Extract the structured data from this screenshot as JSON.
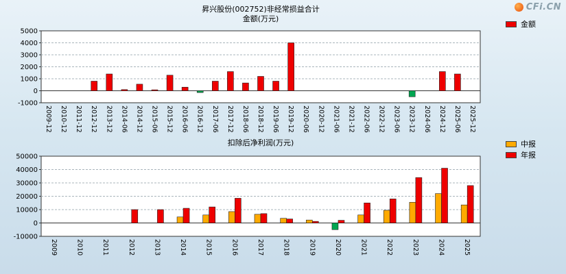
{
  "logo": {
    "text": "CFi.CN"
  },
  "chart_data": [
    {
      "type": "bar",
      "title": "昇兴股份(002752)非经常损益合计",
      "subtitle": "金额(万元)",
      "legend": [
        {
          "label": "金额",
          "color": "#ee0000"
        }
      ],
      "ylim": [
        -1000,
        5000
      ],
      "yticks": [
        5000,
        4000,
        3000,
        2000,
        1000,
        0,
        -1000
      ],
      "grid": "dashed-horizontal",
      "legend_position": "top-right",
      "negative_color": "#00a651",
      "categories": [
        "2009-12",
        "2010-12",
        "2011-12",
        "2012-12",
        "2013-12",
        "2014-06",
        "2014-12",
        "2015-06",
        "2015-12",
        "2016-06",
        "2016-12",
        "2017-06",
        "2017-12",
        "2018-06",
        "2018-12",
        "2019-06",
        "2019-12",
        "2020-06",
        "2020-12",
        "2021-06",
        "2021-12",
        "2022-06",
        "2022-12",
        "2023-06",
        "2023-12",
        "2024-06",
        "2024-12",
        "2025-06",
        "2025-12"
      ],
      "series": [
        {
          "name": "金额",
          "color": "#ee0000",
          "values": [
            null,
            null,
            null,
            800,
            1400,
            100,
            550,
            80,
            1300,
            300,
            -150,
            800,
            1600,
            650,
            1200,
            800,
            4000,
            null,
            null,
            null,
            null,
            null,
            null,
            null,
            -500,
            null,
            1600,
            1400,
            null
          ]
        }
      ]
    },
    {
      "type": "bar",
      "title": "扣除后净利润(万元)",
      "subtitle": "",
      "legend": [
        {
          "label": "中报",
          "color": "#ffaa00"
        },
        {
          "label": "年报",
          "color": "#ee0000"
        }
      ],
      "ylim": [
        -10000,
        50000
      ],
      "yticks": [
        50000,
        40000,
        30000,
        20000,
        10000,
        0,
        -10000
      ],
      "grid": "dashed-horizontal",
      "legend_position": "top-right",
      "negative_color": "#00a651",
      "categories": [
        "2009",
        "2010",
        "2011",
        "2012",
        "2013",
        "2014",
        "2015",
        "2016",
        "2017",
        "2018",
        "2019",
        "2020",
        "2021",
        "2022",
        "2023",
        "2024",
        "2025"
      ],
      "series": [
        {
          "name": "中报",
          "color": "#ffaa00",
          "values": [
            null,
            null,
            null,
            null,
            null,
            4500,
            6000,
            8500,
            6500,
            3500,
            2200,
            -5000,
            6000,
            9500,
            15500,
            22000,
            13500
          ]
        },
        {
          "name": "年报",
          "color": "#ee0000",
          "values": [
            null,
            null,
            null,
            10000,
            10000,
            11000,
            12000,
            18500,
            7000,
            3000,
            1200,
            2000,
            15000,
            18000,
            34000,
            41000,
            28000
          ]
        }
      ]
    }
  ]
}
